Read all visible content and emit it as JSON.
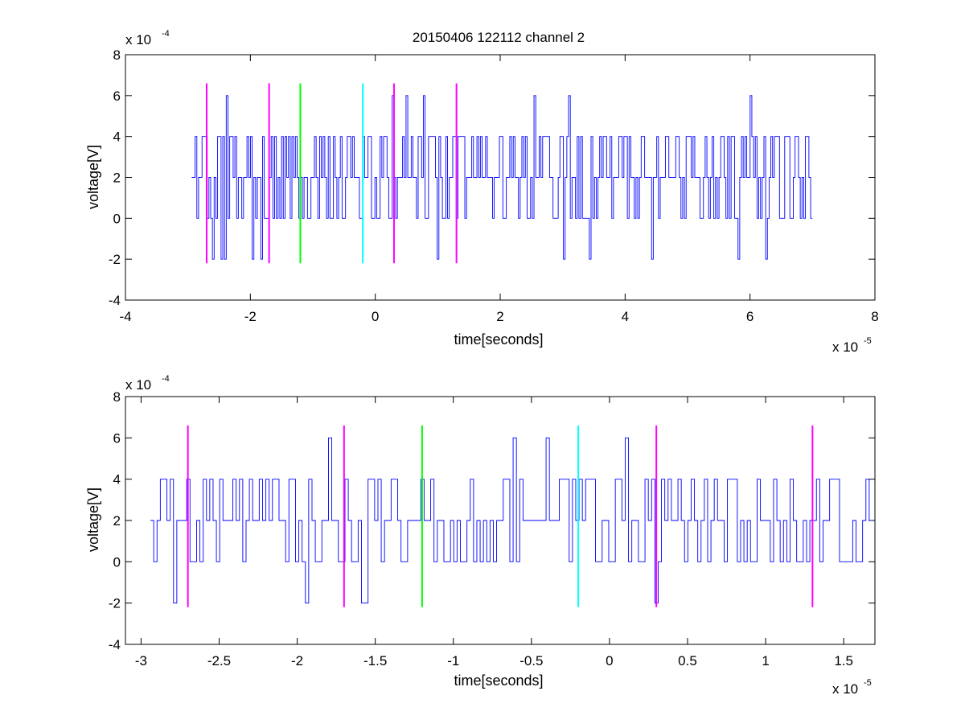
{
  "figure_title": "20150406 122112 channel 2",
  "chart_data": [
    {
      "type": "line",
      "title": "20150406 122112 channel 2",
      "xlabel": "time[seconds]",
      "ylabel": "voltage[V]",
      "x_exponent_label": "x 10",
      "x_exponent": "-5",
      "y_exponent_label": "x 10",
      "y_exponent": "-4",
      "xlim": [
        -4e-05,
        8e-05
      ],
      "ylim": [
        -0.0004,
        0.0008
      ],
      "xticks": [
        -4,
        -2,
        0,
        2,
        4,
        6,
        8
      ],
      "xtick_labels": [
        "-4",
        "-2",
        "0",
        "2",
        "4",
        "6",
        "8"
      ],
      "yticks": [
        -4,
        -2,
        0,
        2,
        4,
        6,
        8
      ],
      "ytick_labels": [
        "-4",
        "-2",
        "0",
        "2",
        "4",
        "6",
        "8"
      ],
      "grid": false,
      "signal": {
        "name": "",
        "color": "#0000ff",
        "x_start": -2.94e-05,
        "x_end": 7.02e-05,
        "levels": [
          -0.0002,
          0,
          0.0002,
          0.0004,
          0.0006
        ],
        "description_values": "quantized noise between -2e-4 and 6e-4 V, mostly 0 to 4e-4 V"
      },
      "markers": [
        {
          "x": -2.7e-05,
          "color": "#ff00ff",
          "ymin": -0.00022,
          "ymax": 0.00066
        },
        {
          "x": -1.7e-05,
          "color": "#ff00ff",
          "ymin": -0.00022,
          "ymax": 0.00066
        },
        {
          "x": -1.2e-05,
          "color": "#00ff00",
          "ymin": -0.00022,
          "ymax": 0.00066
        },
        {
          "x": -2e-06,
          "color": "#00ffff",
          "ymin": -0.00022,
          "ymax": 0.00066
        },
        {
          "x": 3e-06,
          "color": "#ff00ff",
          "ymin": -0.00022,
          "ymax": 0.00066
        },
        {
          "x": 1.3e-05,
          "color": "#ff00ff",
          "ymin": -0.00022,
          "ymax": 0.00066
        }
      ]
    },
    {
      "type": "line",
      "title": "",
      "xlabel": "time[seconds]",
      "ylabel": "voltage[V]",
      "x_exponent_label": "x 10",
      "x_exponent": "-5",
      "y_exponent_label": "x 10",
      "y_exponent": "-4",
      "xlim": [
        -3.1e-05,
        1.7e-05
      ],
      "ylim": [
        -0.0004,
        0.0008
      ],
      "xticks": [
        -3,
        -2.5,
        -2,
        -1.5,
        -1,
        -0.5,
        0,
        0.5,
        1,
        1.5
      ],
      "xtick_labels": [
        "-3",
        "-2.5",
        "-2",
        "-1.5",
        "-1",
        "-0.5",
        "0",
        "0.5",
        "1",
        "1.5"
      ],
      "yticks": [
        -4,
        -2,
        0,
        2,
        4,
        6,
        8
      ],
      "ytick_labels": [
        "-4",
        "-2",
        "0",
        "2",
        "4",
        "6",
        "8"
      ],
      "grid": false,
      "signal": {
        "name": "",
        "color": "#0000ff",
        "x_start": -2.94e-05,
        "x_end": 1.7e-05,
        "levels": [
          -0.0002,
          0,
          0.0002,
          0.0004,
          0.0006
        ],
        "description_values": "zoomed view of the same quantized noise signal"
      },
      "markers": [
        {
          "x": -2.7e-05,
          "color": "#ff00ff",
          "ymin": -0.00022,
          "ymax": 0.00066
        },
        {
          "x": -1.7e-05,
          "color": "#ff00ff",
          "ymin": -0.00022,
          "ymax": 0.00066
        },
        {
          "x": -1.2e-05,
          "color": "#00ff00",
          "ymin": -0.00022,
          "ymax": 0.00066
        },
        {
          "x": -2e-06,
          "color": "#00ffff",
          "ymin": -0.00022,
          "ymax": 0.00066
        },
        {
          "x": 3e-06,
          "color": "#ff00ff",
          "ymin": -0.00022,
          "ymax": 0.00066
        },
        {
          "x": 1.3e-05,
          "color": "#ff00ff",
          "ymin": -0.00022,
          "ymax": 0.00066
        }
      ]
    }
  ]
}
